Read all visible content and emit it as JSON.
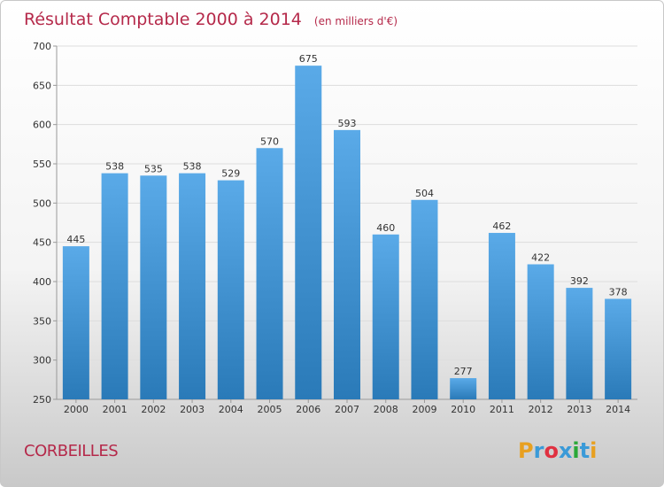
{
  "chart_data": {
    "type": "bar",
    "title": "Résultat Comptable 2000 à 2014",
    "subtitle": "(en milliers d'€)",
    "categories": [
      "2000",
      "2001",
      "2002",
      "2003",
      "2004",
      "2005",
      "2006",
      "2007",
      "2008",
      "2009",
      "2010",
      "2011",
      "2012",
      "2013",
      "2014"
    ],
    "values": [
      445,
      538,
      535,
      538,
      529,
      570,
      675,
      593,
      460,
      504,
      277,
      462,
      422,
      392,
      378
    ],
    "ylim": [
      250,
      700
    ],
    "yticks": [
      250,
      300,
      350,
      400,
      450,
      500,
      550,
      600,
      650,
      700
    ],
    "grid": true,
    "bar_color_top": "#5aaae8",
    "bar_color_bottom": "#2a7ab8"
  },
  "footer": {
    "commune": "CORBEILLES",
    "logo_letters": [
      "P",
      "r",
      "o",
      "x",
      "i",
      "t",
      "i"
    ],
    "logo_colors": [
      "#e8a020",
      "#3a9ad8",
      "#e03040",
      "#3a9ad8",
      "#2aa838",
      "#3a9ad8",
      "#e8a020"
    ]
  }
}
